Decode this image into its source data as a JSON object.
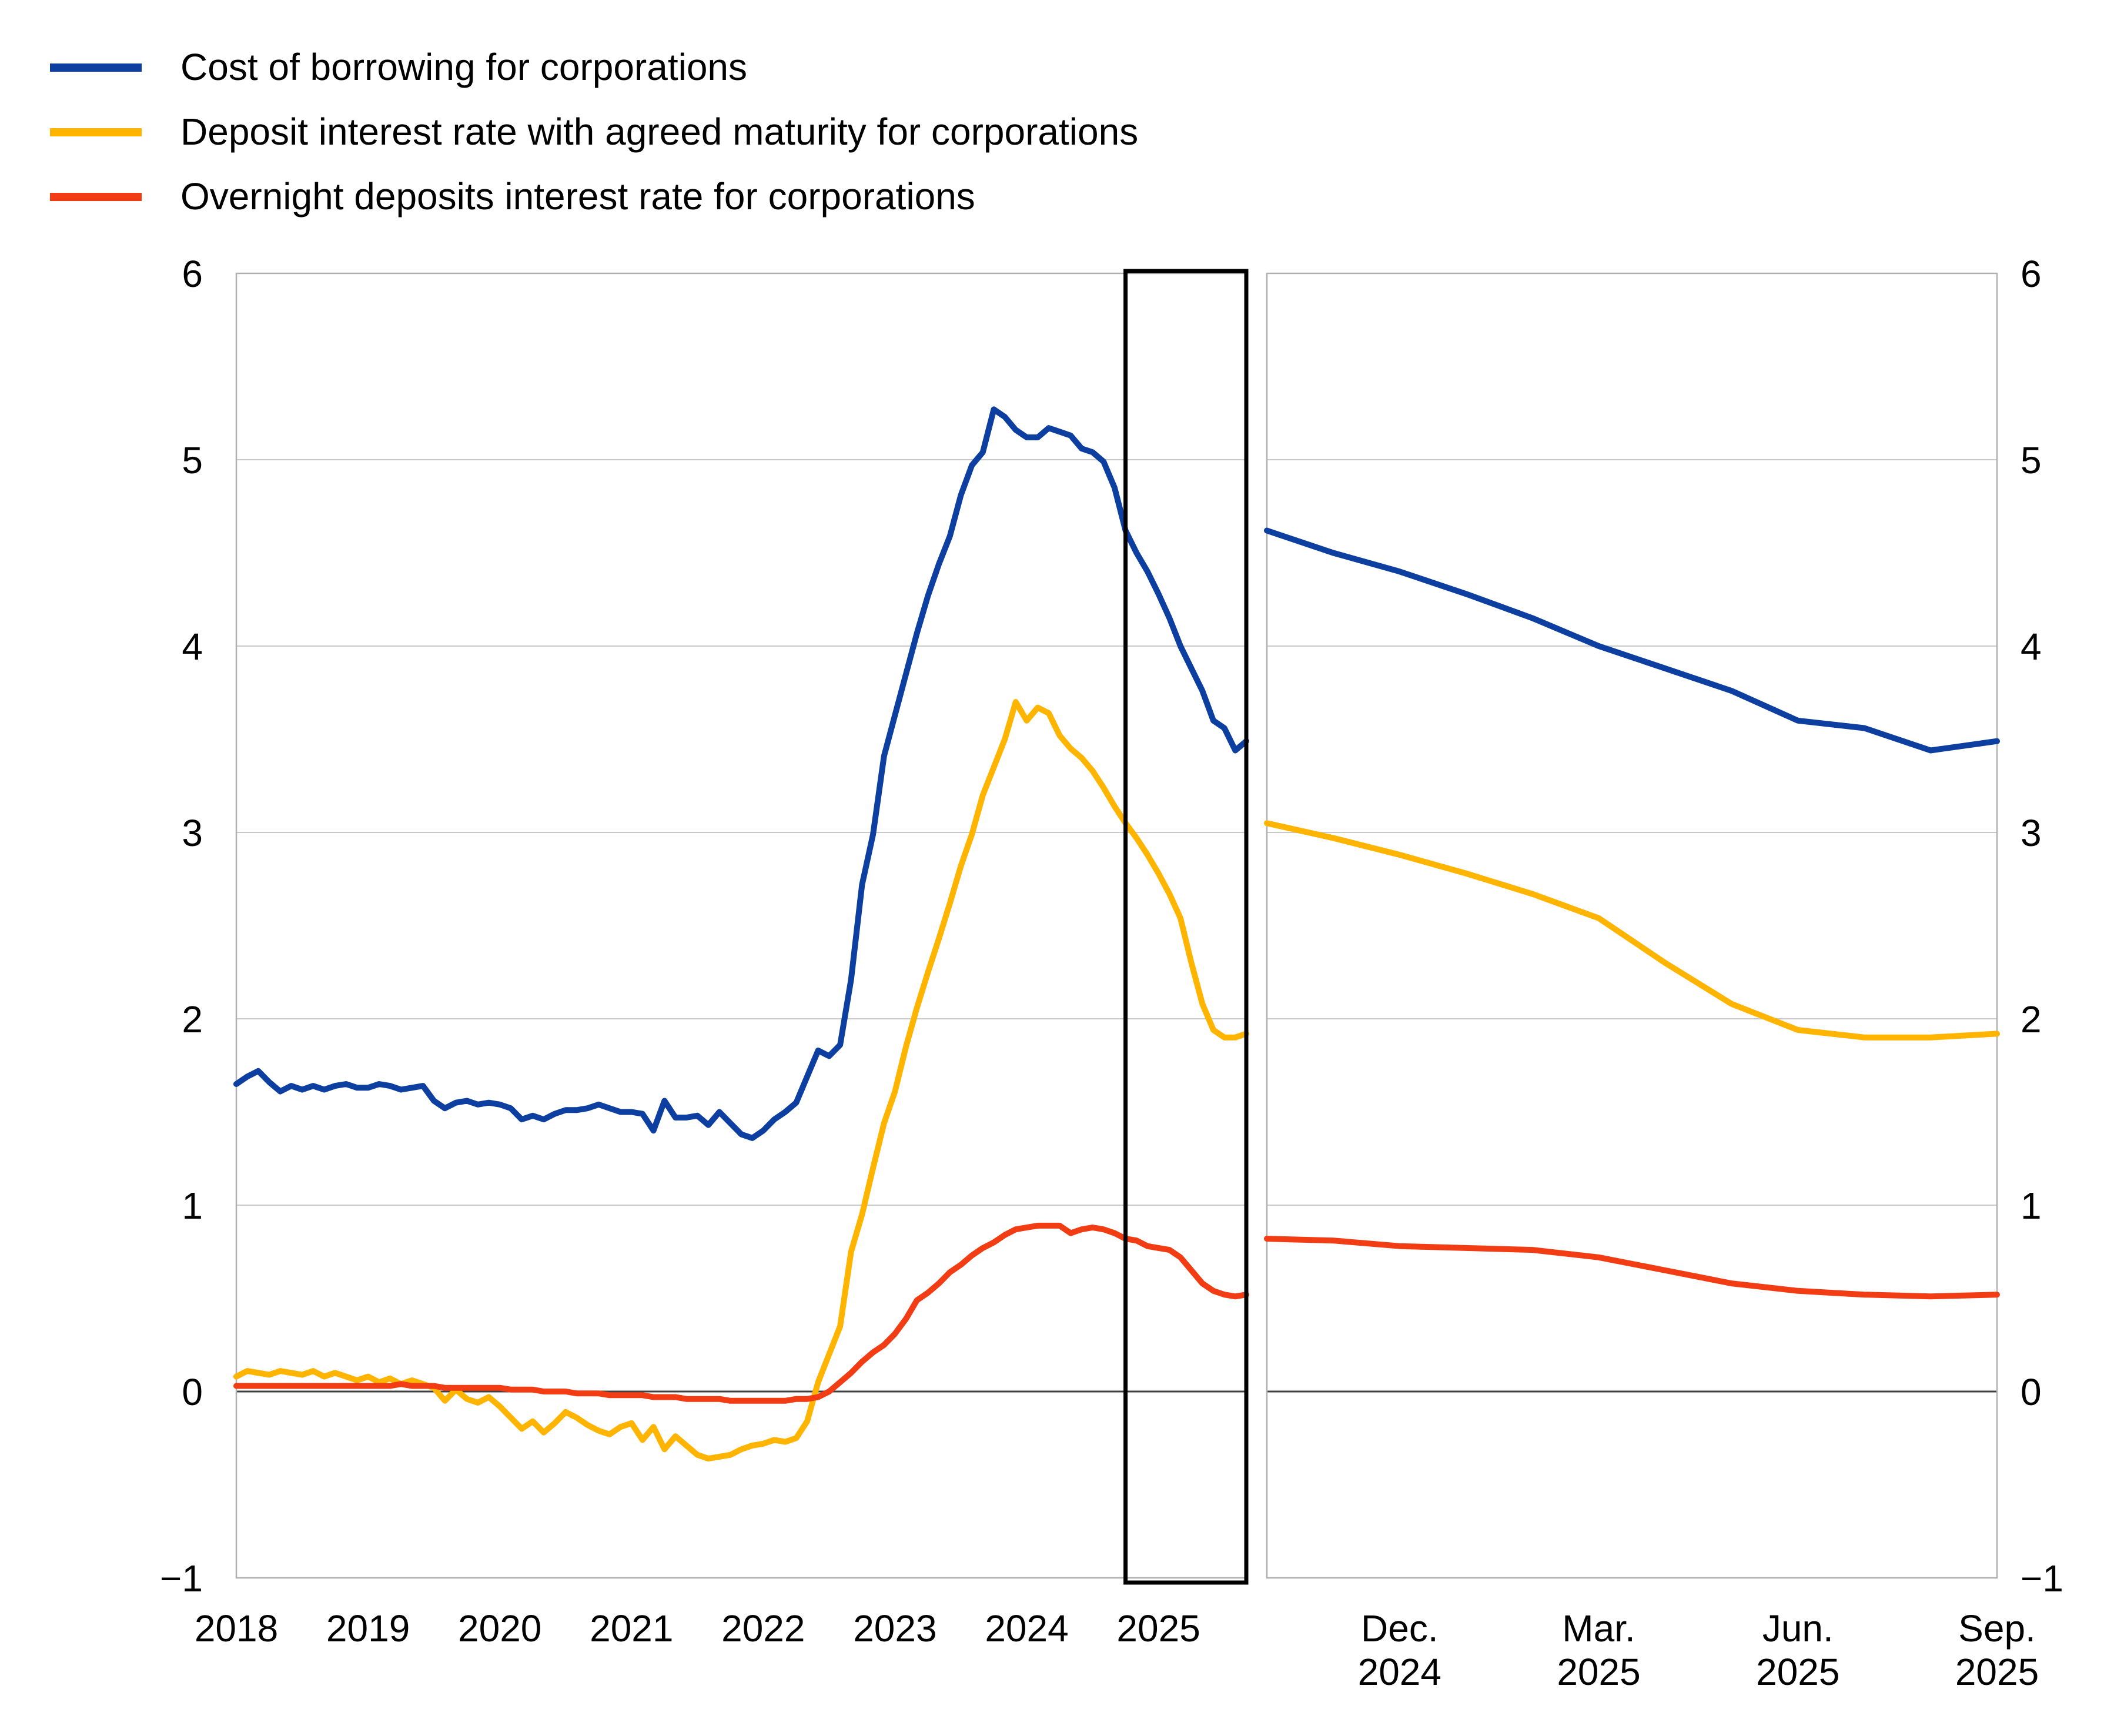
{
  "legend": {
    "items": [
      {
        "label": "Cost of borrowing for corporations",
        "color": "#0d3fa0"
      },
      {
        "label": "Deposit interest rate with agreed maturity for corporations",
        "color": "#ffb400"
      },
      {
        "label": "Overnight deposits interest rate for corporations",
        "color": "#f23c14"
      }
    ]
  },
  "chart_data": {
    "type": "line",
    "title": "",
    "ylabel": "",
    "grid": true,
    "colors": {
      "gridline": "#c9c9c9",
      "zero_line": "#3f3f3f",
      "panel_border": "#b0b0b0",
      "highlight_box": "#000000"
    },
    "y_axis": {
      "min": -1,
      "max": 6,
      "tick_values": [
        6,
        5,
        4,
        3,
        2,
        1,
        0,
        -1
      ],
      "tick_labels": [
        "6",
        "5",
        "4",
        "3",
        "2",
        "1",
        "0",
        "−1"
      ],
      "shown_on": "both-sides"
    },
    "left_panel": {
      "x_start": "2018-01",
      "x_end": "2025-09",
      "frequency": "monthly",
      "tick_labels": [
        "2018",
        "2019",
        "2020",
        "2021",
        "2022",
        "2023",
        "2024",
        "2025"
      ],
      "highlight_box": {
        "start": "2024-10",
        "end": "2025-09"
      },
      "series": [
        {
          "name": "Cost of borrowing for corporations",
          "color": "#0d3fa0",
          "values": [
            1.65,
            1.69,
            1.72,
            1.66,
            1.61,
            1.64,
            1.62,
            1.64,
            1.62,
            1.64,
            1.65,
            1.63,
            1.63,
            1.65,
            1.64,
            1.62,
            1.63,
            1.64,
            1.56,
            1.52,
            1.55,
            1.56,
            1.54,
            1.55,
            1.54,
            1.52,
            1.46,
            1.48,
            1.46,
            1.49,
            1.51,
            1.51,
            1.52,
            1.54,
            1.52,
            1.5,
            1.5,
            1.49,
            1.4,
            1.56,
            1.47,
            1.47,
            1.48,
            1.43,
            1.5,
            1.44,
            1.38,
            1.36,
            1.4,
            1.46,
            1.5,
            1.55,
            1.69,
            1.83,
            1.8,
            1.86,
            2.21,
            2.72,
            2.99,
            3.41,
            3.63,
            3.85,
            4.07,
            4.27,
            4.44,
            4.59,
            4.81,
            4.97,
            5.04,
            5.27,
            5.23,
            5.16,
            5.12,
            5.12,
            5.17,
            5.15,
            5.13,
            5.06,
            5.04,
            4.99,
            4.85,
            4.62,
            4.5,
            4.4,
            4.28,
            4.15,
            4.0,
            3.88,
            3.76,
            3.6,
            3.56,
            3.44,
            3.49
          ]
        },
        {
          "name": "Deposit interest rate with agreed maturity for corporations",
          "color": "#ffb400",
          "values": [
            0.08,
            0.11,
            0.1,
            0.09,
            0.11,
            0.1,
            0.09,
            0.11,
            0.08,
            0.1,
            0.08,
            0.06,
            0.08,
            0.05,
            0.07,
            0.04,
            0.06,
            0.04,
            0.02,
            -0.05,
            0.01,
            -0.04,
            -0.06,
            -0.03,
            -0.08,
            -0.14,
            -0.2,
            -0.16,
            -0.22,
            -0.17,
            -0.11,
            -0.14,
            -0.18,
            -0.21,
            -0.23,
            -0.19,
            -0.17,
            -0.26,
            -0.19,
            -0.31,
            -0.24,
            -0.29,
            -0.34,
            -0.36,
            -0.35,
            -0.34,
            -0.31,
            -0.29,
            -0.28,
            -0.26,
            -0.27,
            -0.25,
            -0.16,
            0.05,
            0.2,
            0.35,
            0.75,
            0.95,
            1.2,
            1.44,
            1.61,
            1.85,
            2.06,
            2.25,
            2.43,
            2.62,
            2.82,
            2.99,
            3.2,
            3.35,
            3.5,
            3.7,
            3.6,
            3.67,
            3.64,
            3.52,
            3.45,
            3.4,
            3.33,
            3.24,
            3.14,
            3.05,
            2.97,
            2.88,
            2.78,
            2.67,
            2.54,
            2.3,
            2.08,
            1.94,
            1.9,
            1.9,
            1.92
          ]
        },
        {
          "name": "Overnight deposits interest rate for corporations",
          "color": "#f23c14",
          "values": [
            0.03,
            0.03,
            0.03,
            0.03,
            0.03,
            0.03,
            0.03,
            0.03,
            0.03,
            0.03,
            0.03,
            0.03,
            0.03,
            0.03,
            0.03,
            0.04,
            0.03,
            0.03,
            0.03,
            0.02,
            0.02,
            0.02,
            0.02,
            0.02,
            0.02,
            0.01,
            0.01,
            0.01,
            0.0,
            0.0,
            0.0,
            -0.01,
            -0.01,
            -0.01,
            -0.02,
            -0.02,
            -0.02,
            -0.02,
            -0.03,
            -0.03,
            -0.03,
            -0.04,
            -0.04,
            -0.04,
            -0.04,
            -0.05,
            -0.05,
            -0.05,
            -0.05,
            -0.05,
            -0.05,
            -0.04,
            -0.04,
            -0.03,
            0.0,
            0.05,
            0.1,
            0.16,
            0.21,
            0.25,
            0.31,
            0.39,
            0.49,
            0.53,
            0.58,
            0.64,
            0.68,
            0.73,
            0.77,
            0.8,
            0.84,
            0.87,
            0.88,
            0.89,
            0.89,
            0.89,
            0.85,
            0.87,
            0.88,
            0.87,
            0.85,
            0.82,
            0.81,
            0.78,
            0.77,
            0.76,
            0.72,
            0.65,
            0.58,
            0.54,
            0.52,
            0.51,
            0.52
          ]
        }
      ]
    },
    "right_panel": {
      "x_start": "2024-10",
      "x_end": "2025-09",
      "frequency": "monthly",
      "tick_labels": [
        [
          "Dec.",
          "2024"
        ],
        [
          "Mar.",
          "2025"
        ],
        [
          "Jun.",
          "2025"
        ],
        [
          "Sep.",
          "2025"
        ]
      ],
      "tick_month_index": [
        2,
        5,
        8,
        11
      ],
      "series": [
        {
          "name": "Cost of borrowing for corporations",
          "color": "#0d3fa0",
          "values": [
            4.62,
            4.5,
            4.4,
            4.28,
            4.15,
            4.0,
            3.88,
            3.76,
            3.6,
            3.56,
            3.44,
            3.49
          ]
        },
        {
          "name": "Deposit interest rate with agreed maturity for corporations",
          "color": "#ffb400",
          "values": [
            3.05,
            2.97,
            2.88,
            2.78,
            2.67,
            2.54,
            2.3,
            2.08,
            1.94,
            1.9,
            1.9,
            1.92
          ]
        },
        {
          "name": "Overnight deposits interest rate for corporations",
          "color": "#f23c14",
          "values": [
            0.82,
            0.81,
            0.78,
            0.77,
            0.76,
            0.72,
            0.65,
            0.58,
            0.54,
            0.52,
            0.51,
            0.52
          ]
        }
      ]
    }
  }
}
